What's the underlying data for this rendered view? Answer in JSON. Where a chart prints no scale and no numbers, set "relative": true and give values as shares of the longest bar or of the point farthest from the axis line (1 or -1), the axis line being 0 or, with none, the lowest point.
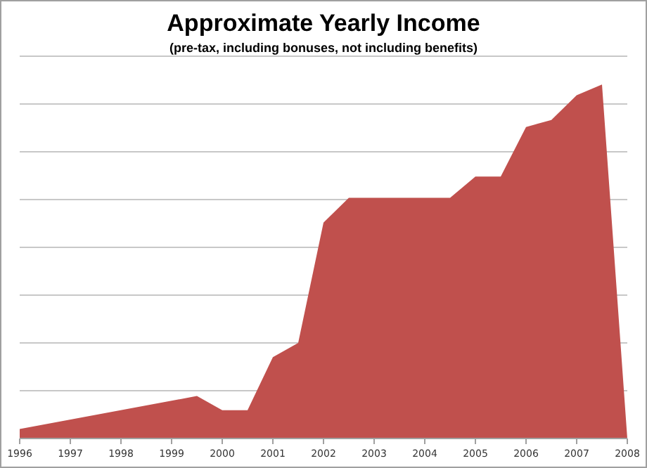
{
  "chart_data": {
    "type": "area",
    "title": "Approximate Yearly Income",
    "subtitle": "(pre-tax, including bonuses, not including benefits)",
    "relative": true,
    "grid": "y",
    "xlim": [
      1996,
      2008
    ],
    "xticks": [
      1996,
      1997,
      1998,
      1999,
      2000,
      2001,
      2002,
      2003,
      2004,
      2005,
      2006,
      2007,
      2008
    ],
    "x": [
      1996,
      1999.5,
      2000,
      2000.5,
      2001,
      2001.5,
      2002,
      2002.5,
      2004.5,
      2005,
      2005.5,
      2006,
      2006.5,
      2007,
      2007.5,
      2008
    ],
    "series": [
      {
        "color": "#c0504d",
        "values": [
          0.027,
          0.12,
          0.08,
          0.08,
          0.23,
          0.27,
          0.61,
          0.68,
          0.68,
          0.74,
          0.74,
          0.88,
          0.9,
          0.97,
          1,
          0
        ]
      }
    ]
  }
}
